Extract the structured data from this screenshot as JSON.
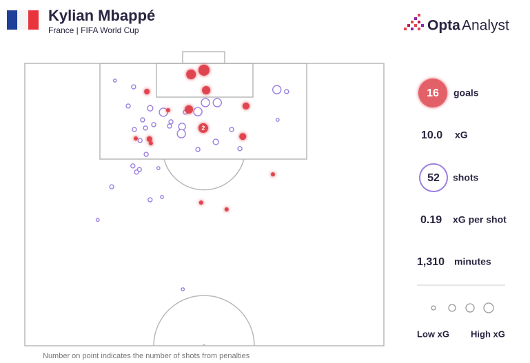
{
  "header": {
    "title": "Kylian Mbappé",
    "subtitle": "France | FIFA World Cup",
    "brand_bold": "Opta",
    "brand_light": "Analyst"
  },
  "chart_data": {
    "type": "scatter",
    "xlim": [
      0,
      100
    ],
    "ylim": [
      0,
      100
    ],
    "series": [
      {
        "name": "goals",
        "color": "#e0454f",
        "x": [
          46.3,
          49.9,
          50.5,
          34.0,
          61.6,
          39.9,
          45.7,
          49.7,
          30.9,
          34.7,
          35.1,
          60.7,
          69.1,
          49.1,
          56.2
        ],
        "y": [
          3.9,
          2.4,
          9.5,
          10.0,
          15.1,
          16.6,
          16.3,
          22.9,
          26.6,
          26.8,
          28.3,
          25.9,
          39.3,
          49.3,
          51.7
        ],
        "xg": [
          0.5,
          0.6,
          0.4,
          0.2,
          0.3,
          0.1,
          0.4,
          0.5,
          0.1,
          0.2,
          0.1,
          0.3,
          0.1,
          0.1,
          0.1
        ],
        "point_labels": [
          null,
          null,
          null,
          null,
          null,
          null,
          null,
          "2",
          null,
          null,
          null,
          null,
          null,
          null,
          null
        ]
      },
      {
        "name": "shots",
        "color": "#9b7fe0",
        "x": [
          25.1,
          30.3,
          70.2,
          72.9,
          28.8,
          34.9,
          38.6,
          44.7,
          48.2,
          50.3,
          53.6,
          32.8,
          40.7,
          35.9,
          40.3,
          43.8,
          43.6,
          33.6,
          30.5,
          57.6,
          70.4,
          32.1,
          53.2,
          48.2,
          59.9,
          33.8,
          30.1,
          31.9,
          31.1,
          37.2,
          24.2,
          38.2,
          34.9,
          20.3,
          44.0
        ],
        "y": [
          6.1,
          8.3,
          9.3,
          10.0,
          15.1,
          15.9,
          17.3,
          17.3,
          17.1,
          13.9,
          13.9,
          20.0,
          20.7,
          21.7,
          22.2,
          22.4,
          24.9,
          22.9,
          23.4,
          23.4,
          20.0,
          27.3,
          27.8,
          30.5,
          30.2,
          32.2,
          36.3,
          37.6,
          38.5,
          37.1,
          43.7,
          47.3,
          48.3,
          55.4,
          80.0
        ],
        "xg": [
          0.02,
          0.1,
          0.4,
          0.1,
          0.1,
          0.2,
          0.4,
          0.1,
          0.4,
          0.4,
          0.4,
          0.1,
          0.1,
          0.1,
          0.1,
          0.3,
          0.4,
          0.1,
          0.1,
          0.1,
          0.02,
          0.1,
          0.2,
          0.1,
          0.1,
          0.1,
          0.1,
          0.1,
          0.1,
          0.02,
          0.1,
          0.02,
          0.1,
          0.02,
          0.02
        ]
      }
    ],
    "note": "Number on point indicates the number of shots from penalties"
  },
  "stats": [
    {
      "value": "16",
      "label": "goals"
    },
    {
      "value": "10.0",
      "label": "xG"
    },
    {
      "value": "52",
      "label": "shots"
    },
    {
      "value": "0.19",
      "label": "xG per shot"
    },
    {
      "value": "1,310",
      "label": "minutes"
    }
  ],
  "size_legend": {
    "low": "Low xG",
    "high": "High xG"
  }
}
